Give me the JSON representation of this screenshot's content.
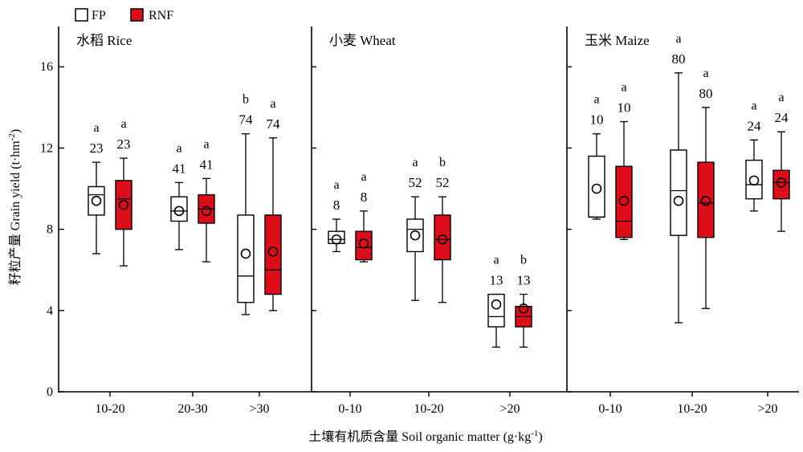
{
  "chart_data": {
    "type": "boxplot",
    "ylabel_zh": "籽粒产量",
    "ylabel_en": "Grain yield (t·hm",
    "ylabel_sup": "-2",
    "ylabel_close": ")",
    "xlabel_zh": "土壤有机质含量",
    "xlabel_en": "Soil organic matter (g·kg",
    "xlabel_sup": "-1",
    "xlabel_close": ")",
    "ylim": [
      0,
      18
    ],
    "yticks": [
      0,
      4,
      8,
      12,
      16
    ],
    "legend": [
      {
        "name": "FP",
        "color": "#ffffff"
      },
      {
        "name": "RNF",
        "color": "#dd0e1a"
      }
    ],
    "panels": [
      {
        "title": "水稻 Rice",
        "categories": [
          {
            "label": "10-20",
            "boxes": [
              {
                "series": "FP",
                "min": 6.8,
                "q1": 8.7,
                "median": 9.7,
                "q3": 10.1,
                "max": 11.3,
                "mean": 9.4,
                "n": "23",
                "sig": "a"
              },
              {
                "series": "RNF",
                "min": 6.2,
                "q1": 8.0,
                "median": 9.5,
                "q3": 10.4,
                "max": 11.5,
                "mean": 9.2,
                "n": "23",
                "sig": "a"
              }
            ]
          },
          {
            "label": "20-30",
            "boxes": [
              {
                "series": "FP",
                "min": 7.0,
                "q1": 8.4,
                "median": 8.9,
                "q3": 9.6,
                "max": 10.3,
                "mean": 8.9,
                "n": "41",
                "sig": "a"
              },
              {
                "series": "RNF",
                "min": 6.4,
                "q1": 8.3,
                "median": 9.0,
                "q3": 9.7,
                "max": 10.5,
                "mean": 8.9,
                "n": "41",
                "sig": "a"
              }
            ]
          },
          {
            "label": ">30",
            "boxes": [
              {
                "series": "FP",
                "min": 3.8,
                "q1": 4.4,
                "median": 5.7,
                "q3": 8.7,
                "max": 12.7,
                "mean": 6.8,
                "n": "74",
                "sig": "b"
              },
              {
                "series": "RNF",
                "min": 4.0,
                "q1": 4.8,
                "median": 6.0,
                "q3": 8.7,
                "max": 12.5,
                "mean": 6.9,
                "n": "74",
                "sig": "a"
              }
            ]
          }
        ]
      },
      {
        "title": "小麦 Wheat",
        "categories": [
          {
            "label": "0-10",
            "boxes": [
              {
                "series": "FP",
                "min": 6.9,
                "q1": 7.3,
                "median": 7.5,
                "q3": 7.9,
                "max": 8.5,
                "mean": 7.5,
                "n": "8",
                "sig": "a"
              },
              {
                "series": "RNF",
                "min": 6.4,
                "q1": 6.5,
                "median": 7.1,
                "q3": 7.9,
                "max": 8.9,
                "mean": 7.3,
                "n": "8",
                "sig": "a"
              }
            ]
          },
          {
            "label": "10-20",
            "boxes": [
              {
                "series": "FP",
                "min": 4.5,
                "q1": 6.9,
                "median": 8.0,
                "q3": 8.5,
                "max": 9.6,
                "mean": 7.7,
                "n": "52",
                "sig": "a"
              },
              {
                "series": "RNF",
                "min": 4.4,
                "q1": 6.5,
                "median": 7.5,
                "q3": 8.7,
                "max": 9.6,
                "mean": 7.5,
                "n": "52",
                "sig": "b"
              }
            ]
          },
          {
            "label": ">20",
            "boxes": [
              {
                "series": "FP",
                "min": 2.2,
                "q1": 3.2,
                "median": 3.7,
                "q3": 4.8,
                "max": 4.8,
                "mean": 4.3,
                "n": "13",
                "sig": "a"
              },
              {
                "series": "RNF",
                "min": 2.2,
                "q1": 3.2,
                "median": 3.7,
                "q3": 4.2,
                "max": 4.8,
                "mean": 4.1,
                "n": "13",
                "sig": "b"
              }
            ]
          }
        ]
      },
      {
        "title": "玉米 Maize",
        "categories": [
          {
            "label": "0-10",
            "boxes": [
              {
                "series": "FP",
                "min": 8.5,
                "q1": 8.6,
                "median": 8.6,
                "q3": 11.6,
                "max": 12.7,
                "mean": 10.0,
                "n": "10",
                "sig": "a"
              },
              {
                "series": "RNF",
                "min": 7.5,
                "q1": 7.6,
                "median": 8.4,
                "q3": 11.1,
                "max": 13.3,
                "mean": 9.4,
                "n": "10",
                "sig": "a"
              }
            ]
          },
          {
            "label": "10-20",
            "boxes": [
              {
                "series": "FP",
                "min": 3.4,
                "q1": 7.7,
                "median": 9.9,
                "q3": 11.9,
                "max": 15.7,
                "mean": 9.4,
                "n": "80",
                "sig": "a"
              },
              {
                "series": "RNF",
                "min": 4.1,
                "q1": 7.6,
                "median": 9.3,
                "q3": 11.3,
                "max": 14.0,
                "mean": 9.4,
                "n": "80",
                "sig": "a"
              }
            ]
          },
          {
            "label": ">20",
            "boxes": [
              {
                "series": "FP",
                "min": 8.9,
                "q1": 9.5,
                "median": 10.2,
                "q3": 11.4,
                "max": 12.4,
                "mean": 10.4,
                "n": "24",
                "sig": "a"
              },
              {
                "series": "RNF",
                "min": 7.9,
                "q1": 9.5,
                "median": 10.3,
                "q3": 10.9,
                "max": 12.8,
                "mean": 10.3,
                "n": "24",
                "sig": "a"
              }
            ]
          }
        ]
      }
    ]
  }
}
